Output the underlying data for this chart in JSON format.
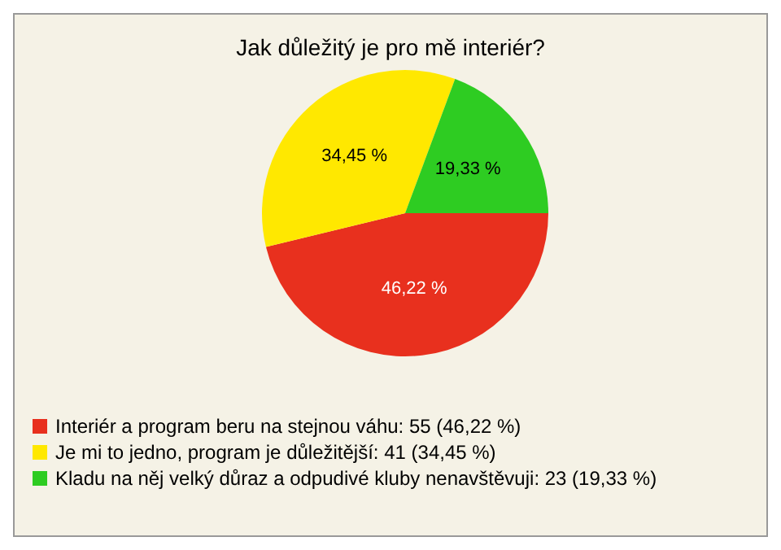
{
  "chart_data": {
    "type": "pie",
    "title": "Jak důležitý je pro mě interiér?",
    "categories": [
      "Interiér a program beru na stejnou váhu: 55 (46,22 %)",
      "Je mi to jedno, program je důležitější: 41 (34,45 %)",
      "Kladu na něj velký důraz a odpudivé kluby nenavštěvuji: 23 (19,33 %)"
    ],
    "values": [
      46.22,
      34.45,
      19.33
    ],
    "colors": [
      "#e8301e",
      "#ffe800",
      "#2ecc22"
    ],
    "value_labels": [
      "46,22 %",
      "34,45 %",
      "19,33 %"
    ],
    "legend": "bottom"
  }
}
